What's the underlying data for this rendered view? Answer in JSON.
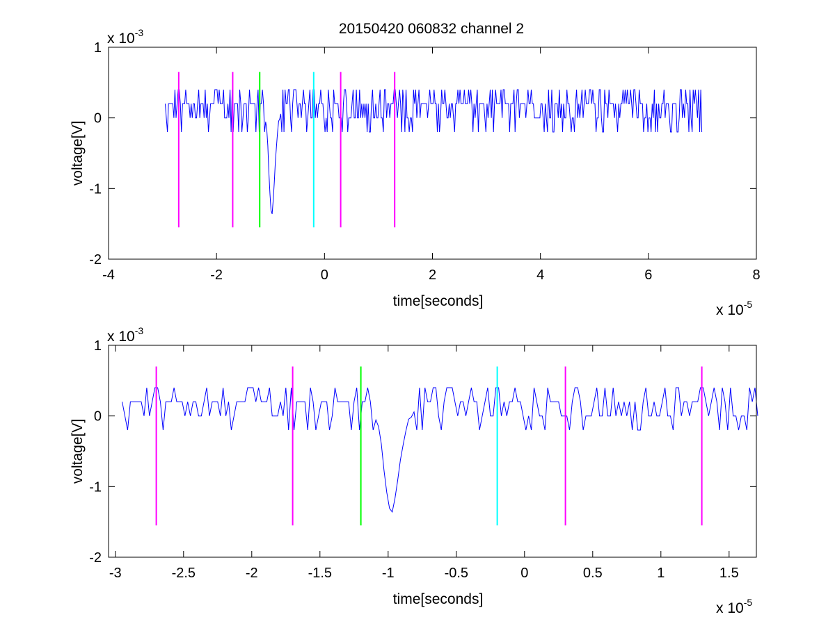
{
  "figure": {
    "title": "20150420 060832 channel 2",
    "background": "#ffffff"
  },
  "chart_data": [
    {
      "type": "line",
      "panel": "top",
      "title": "20150420 060832 channel 2",
      "xlabel": "time[seconds]",
      "ylabel": "voltage[V]",
      "x_multiplier_text": "x 10",
      "x_multiplier_exp": "-5",
      "y_multiplier_text": "x 10",
      "y_multiplier_exp": "-3",
      "xlim": [
        -4,
        8
      ],
      "ylim": [
        -2,
        1
      ],
      "xticks": [
        -4,
        -2,
        0,
        2,
        4,
        6,
        8
      ],
      "xtick_labels": [
        "-4",
        "-2",
        "0",
        "2",
        "4",
        "6",
        "8"
      ],
      "yticks": [
        -2,
        -1,
        0,
        1
      ],
      "ytick_labels": [
        "-2",
        "-1",
        "0",
        "1"
      ],
      "grid": false,
      "signal": {
        "color": "#0000ff",
        "x_start": -2.95,
        "x_end": 7.0,
        "baseline": 0.15,
        "spike": {
          "x": -0.98,
          "min": -1.42
        }
      },
      "markers": [
        {
          "x": -2.7,
          "color": "#ff00ff"
        },
        {
          "x": -1.7,
          "color": "#ff00ff"
        },
        {
          "x": -1.2,
          "color": "#00ff00"
        },
        {
          "x": -0.2,
          "color": "#00ffff"
        },
        {
          "x": 0.3,
          "color": "#ff00ff"
        },
        {
          "x": 1.3,
          "color": "#ff00ff"
        }
      ],
      "marker_ylim": [
        -1.55,
        0.65
      ]
    },
    {
      "type": "line",
      "panel": "bottom",
      "xlabel": "time[seconds]",
      "ylabel": "voltage[V]",
      "x_multiplier_text": "x 10",
      "x_multiplier_exp": "-5",
      "y_multiplier_text": "x 10",
      "y_multiplier_exp": "-3",
      "xlim": [
        -3.05,
        1.7
      ],
      "ylim": [
        -2,
        1
      ],
      "xticks": [
        -3,
        -2.5,
        -2,
        -1.5,
        -1,
        -0.5,
        0,
        0.5,
        1,
        1.5
      ],
      "xtick_labels": [
        "-3",
        "-2.5",
        "-2",
        "-1.5",
        "-1",
        "-0.5",
        "0",
        "0.5",
        "1",
        "1.5"
      ],
      "yticks": [
        -2,
        -1,
        0,
        1
      ],
      "ytick_labels": [
        "-2",
        "-1",
        "0",
        "1"
      ],
      "grid": false,
      "signal": {
        "color": "#0000ff",
        "x_start": -2.95,
        "x_end": 1.7,
        "baseline": 0.15,
        "spike": {
          "x": -0.98,
          "min": -1.42
        }
      },
      "markers": [
        {
          "x": -2.7,
          "color": "#ff00ff"
        },
        {
          "x": -1.7,
          "color": "#ff00ff"
        },
        {
          "x": -1.2,
          "color": "#00ff00"
        },
        {
          "x": -0.2,
          "color": "#00ffff"
        },
        {
          "x": 0.3,
          "color": "#ff00ff"
        },
        {
          "x": 1.3,
          "color": "#ff00ff"
        }
      ],
      "marker_ylim": [
        -1.55,
        0.7
      ]
    }
  ]
}
